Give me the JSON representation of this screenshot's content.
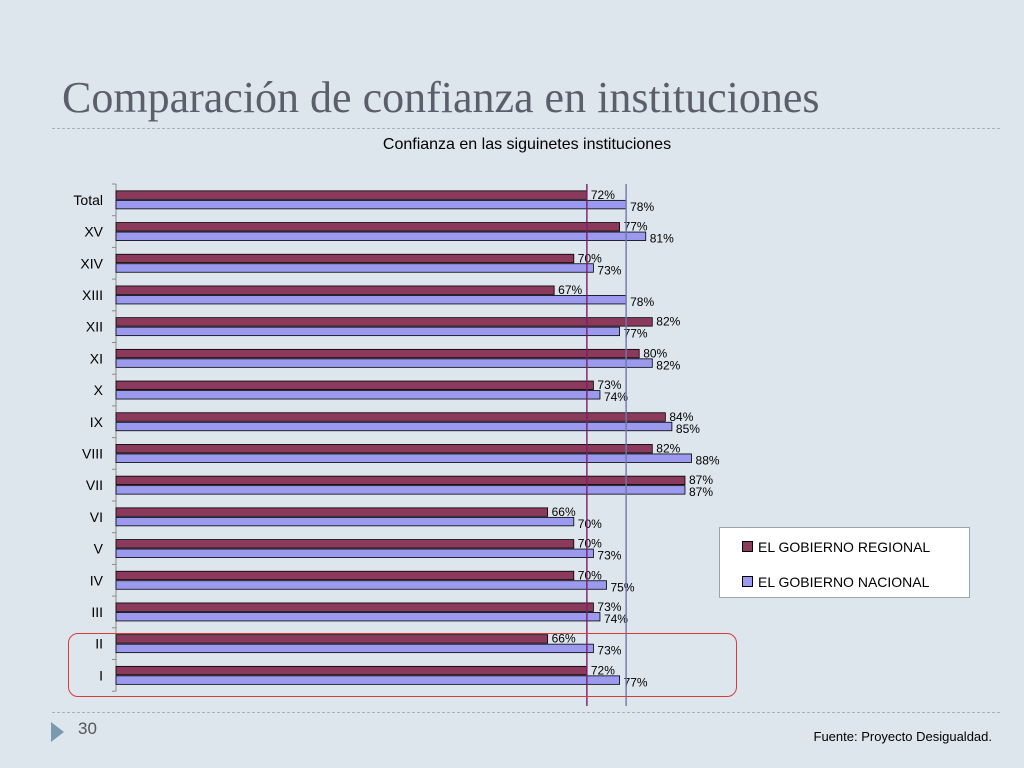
{
  "slide": {
    "title": "Comparación de confianza en instituciones",
    "number": "30",
    "source": "Fuente: Proyecto Desigualdad."
  },
  "colors": {
    "regional": "#8b3a5c",
    "nacional": "#9b9aef",
    "ref_regional": "#7a1f6a",
    "ref_nacional": "#6f78a8",
    "highlight": "#d93a3a"
  },
  "chart_data": {
    "type": "bar",
    "orientation": "horizontal",
    "title": "Confianza en las siguinetes instituciones",
    "categories": [
      "Total",
      "XV",
      "XIV",
      "XIII",
      "XII",
      "XI",
      "X",
      "IX",
      "VIII",
      "VII",
      "VI",
      "V",
      "IV",
      "III",
      "II",
      "I"
    ],
    "series": [
      {
        "name": "EL GOBIERNO REGIONAL",
        "values": [
          72,
          77,
          70,
          67,
          82,
          80,
          73,
          84,
          82,
          87,
          66,
          70,
          70,
          73,
          66,
          72
        ]
      },
      {
        "name": "EL GOBIERNO NACIONAL",
        "values": [
          78,
          81,
          73,
          78,
          77,
          82,
          74,
          85,
          88,
          87,
          70,
          73,
          75,
          74,
          73,
          77
        ]
      }
    ],
    "data_label_suffix": "%",
    "reference_lines": [
      {
        "series": "EL GOBIERNO REGIONAL",
        "value": 72
      },
      {
        "series": "EL GOBIERNO NACIONAL",
        "value": 78
      }
    ],
    "highlighted_categories": [
      "II",
      "I"
    ],
    "legend_position": "right",
    "grid": false,
    "xlim": [
      0,
      100
    ]
  }
}
